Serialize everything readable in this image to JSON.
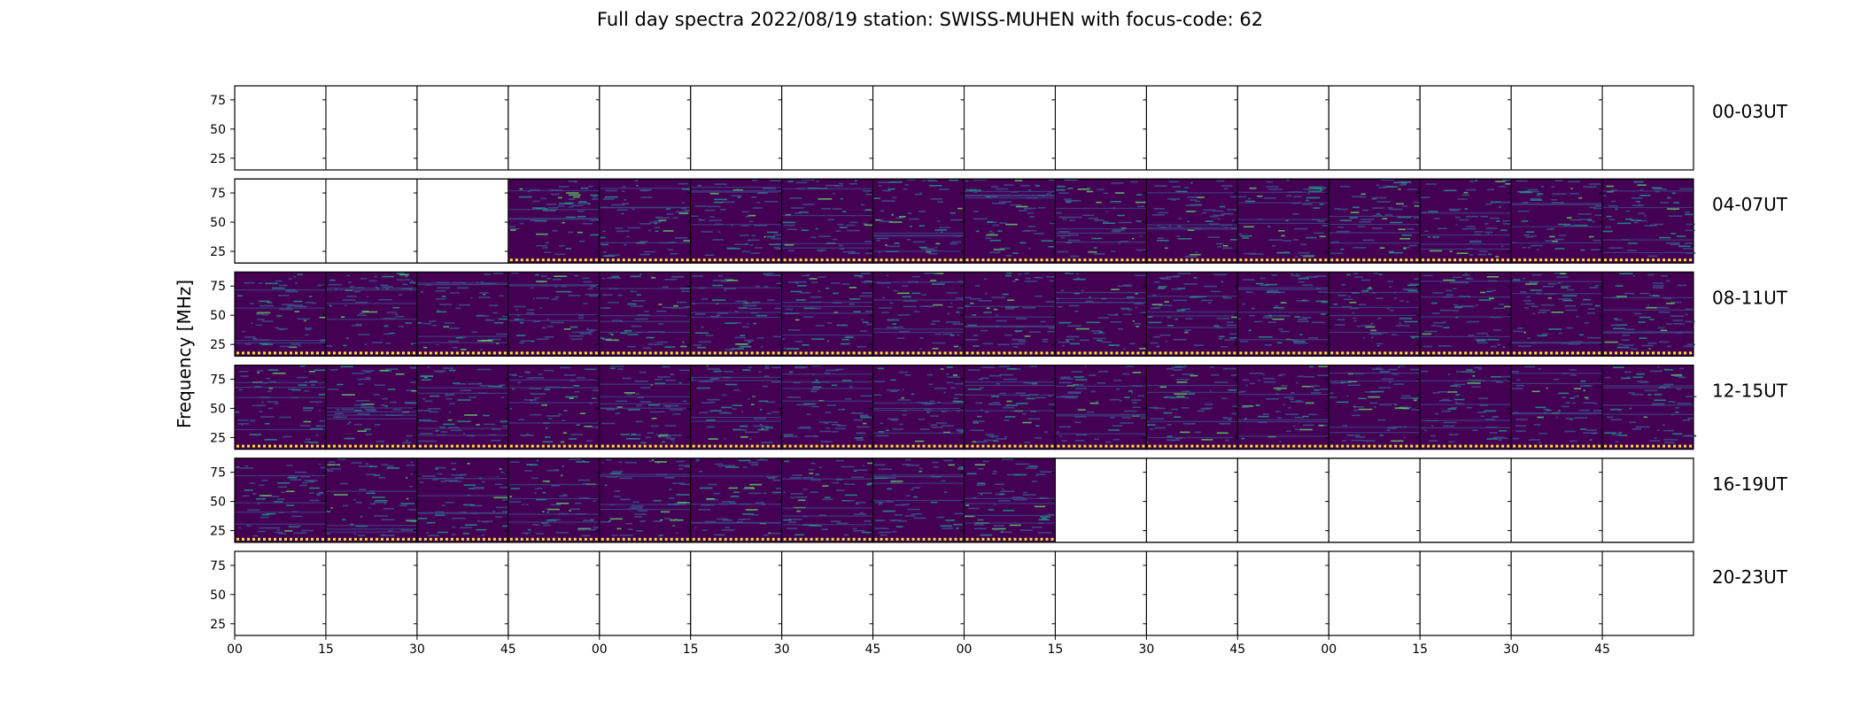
{
  "chart_data": {
    "type": "heatmap",
    "title": "Full day spectra 2022/08/19 station: SWISS-MUHEN with focus-code: 62",
    "ylabel": "Frequency [MHz]",
    "xlabel": "",
    "yticks": [
      "75",
      "50",
      "25"
    ],
    "ylim": [
      15,
      87
    ],
    "xticks": [
      "00",
      "15",
      "30",
      "45",
      "00",
      "15",
      "30",
      "45",
      "00",
      "15",
      "30",
      "45",
      "00",
      "15",
      "30",
      "45"
    ],
    "colormap": [
      "#440154",
      "#3b528b",
      "#21918c",
      "#5ec962",
      "#fde725"
    ],
    "rows": [
      {
        "label": "00-03UT",
        "panels": [
          0,
          0,
          0,
          0,
          0,
          0,
          0,
          0,
          0,
          0,
          0,
          0,
          0,
          0,
          0,
          0
        ]
      },
      {
        "label": "04-07UT",
        "panels": [
          0,
          0,
          0,
          1,
          1,
          1,
          1,
          1,
          1,
          1,
          1,
          1,
          1,
          1,
          1,
          1
        ]
      },
      {
        "label": "08-11UT",
        "panels": [
          1,
          1,
          1,
          1,
          1,
          1,
          1,
          1,
          1,
          1,
          1,
          1,
          1,
          1,
          1,
          1
        ]
      },
      {
        "label": "12-15UT",
        "panels": [
          1,
          1,
          1,
          1,
          1,
          1,
          1,
          1,
          1,
          1,
          1,
          1,
          1,
          1,
          1,
          1
        ]
      },
      {
        "label": "16-19UT",
        "panels": [
          1,
          1,
          1,
          1,
          1,
          1,
          1,
          1,
          1,
          0,
          0,
          0,
          0,
          0,
          0,
          0
        ]
      },
      {
        "label": "20-23UT",
        "panels": [
          0,
          0,
          0,
          0,
          0,
          0,
          0,
          0,
          0,
          0,
          0,
          0,
          0,
          0,
          0,
          0
        ]
      }
    ]
  }
}
